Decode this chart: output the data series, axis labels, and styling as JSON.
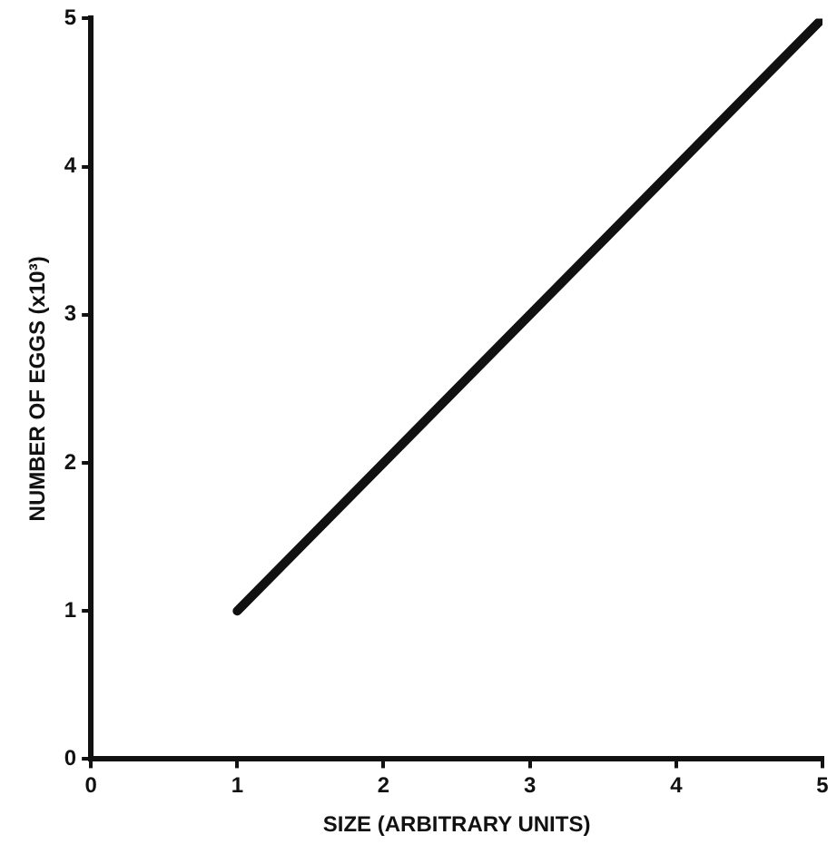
{
  "chart_data": {
    "type": "line",
    "xlabel": "SIZE (ARBITRARY UNITS)",
    "ylabel": "NUMBER OF EGGS (x10³)",
    "x": [
      1,
      5
    ],
    "series": [
      {
        "color": "#111111",
        "values": [
          1,
          5
        ]
      }
    ],
    "xlim": [
      0,
      5
    ],
    "xticks": [
      0,
      1,
      2,
      3,
      4,
      5
    ],
    "ylim": [
      0,
      5
    ],
    "yticks": [
      0,
      1,
      2,
      3,
      4,
      5
    ],
    "grid": false,
    "legend": false,
    "marker": "none",
    "line_style": "solid"
  }
}
